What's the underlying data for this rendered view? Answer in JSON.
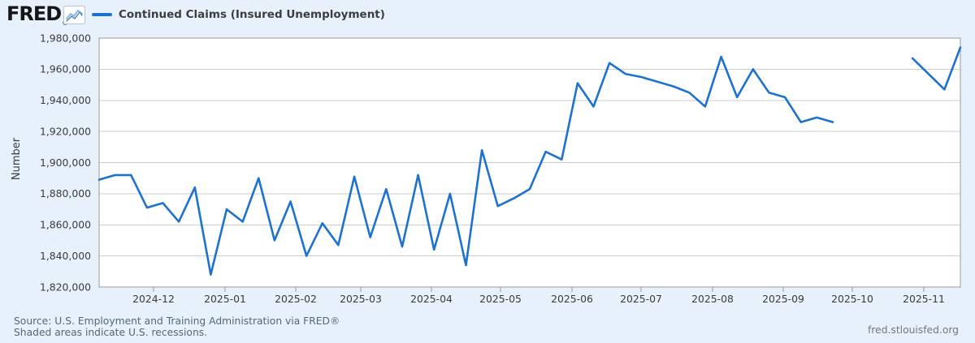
{
  "header": {
    "logo_text": "FRED",
    "registered_mark": "®",
    "legend_label": "Continued Claims (Insured Unemployment)"
  },
  "footer": {
    "source_line": "Source: U.S. Employment and Training Administration via FRED®",
    "recession_note": "Shaded areas indicate U.S. recessions.",
    "site_link": "fred.stlouisfed.org"
  },
  "colors": {
    "background": "#e7f1fb",
    "plot_background": "#ffffff",
    "series": "#1d72cf",
    "grid": "#cccccc",
    "plot_border": "#999999",
    "tick_mark": "#999999",
    "axis_text": "#3b3b3b",
    "title_text": "#3d3d3d",
    "footer_text": "#54677a",
    "link_text": "#73777e",
    "logo_text": "#161616"
  },
  "chart_data": {
    "type": "line",
    "title": "Continued Claims (Insured Unemployment)",
    "series_name": "Continued Claims (Insured Unemployment)",
    "frequency": "weekly",
    "xlabel": "",
    "ylabel": "Number",
    "ylim": [
      1820000,
      1980000
    ],
    "y_ticks": [
      1980000,
      1960000,
      1940000,
      1920000,
      1900000,
      1880000,
      1860000,
      1840000,
      1820000
    ],
    "x_tick_labels": [
      "2024-12",
      "2025-01",
      "2025-02",
      "2025-03",
      "2025-04",
      "2025-05",
      "2025-06",
      "2025-07",
      "2025-08",
      "2025-09",
      "2025-10",
      "2025-11"
    ],
    "grid": true,
    "legend_position": "top",
    "gap_renders_as_missing_segment": true,
    "values": [
      1889000,
      1892000,
      1892000,
      1871000,
      1874000,
      1862000,
      1884000,
      1828000,
      1870000,
      1862000,
      1890000,
      1850000,
      1875000,
      1840000,
      1861000,
      1847000,
      1891000,
      1852000,
      1883000,
      1846000,
      1892000,
      1844000,
      1880000,
      1834000,
      1908000,
      1872000,
      1877000,
      1883000,
      1907000,
      1902000,
      1951000,
      1936000,
      1964000,
      1957000,
      1955000,
      1952000,
      1949000,
      1945000,
      1936000,
      1968000,
      1942000,
      1960000,
      1945000,
      1942000,
      1926000,
      1929000,
      1926000,
      null,
      null,
      null,
      null,
      1967000,
      1957000,
      1947000,
      1974000
    ]
  }
}
